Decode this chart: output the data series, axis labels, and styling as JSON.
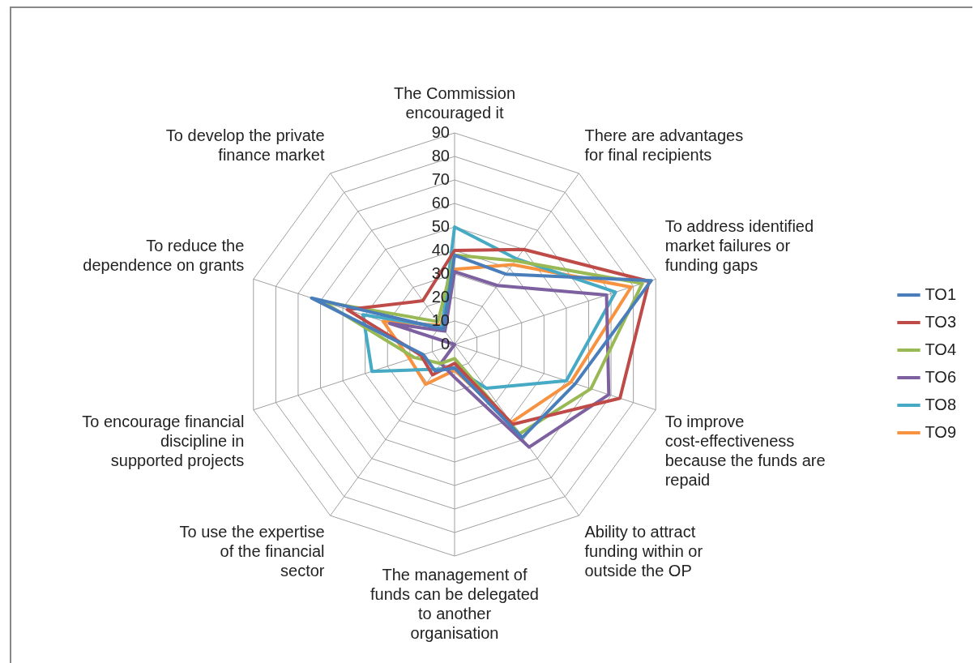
{
  "chart_data": {
    "type": "radar",
    "categories": [
      "The Commission encouraged it",
      "There are advantages for final recipients",
      "To address identified market failures or funding gaps",
      "To improve cost-effectiveness because the funds are repaid",
      "Ability to attract funding within or outside the OP",
      "The management of funds can be delegated to another organisation",
      "To use the expertise of the financial sector",
      "To encourage financial discipline in supported projects",
      "To reduce the dependence on grants",
      "To develop the private finance market"
    ],
    "ylim": [
      0,
      90
    ],
    "yticks": [
      0,
      10,
      20,
      30,
      40,
      50,
      60,
      70,
      80,
      90
    ],
    "grid": true,
    "legend": "right",
    "series": [
      {
        "name": "TO1",
        "color": "#4a7ebb",
        "values": [
          38,
          37,
          88,
          54,
          49,
          10,
          14,
          14,
          64,
          8
        ]
      },
      {
        "name": "TO3",
        "color": "#be4b48",
        "values": [
          40,
          50,
          87,
          74,
          42,
          8,
          16,
          15,
          48,
          23
        ]
      },
      {
        "name": "TO4",
        "color": "#98b954",
        "values": [
          38,
          44,
          84,
          61,
          47,
          6,
          10,
          18,
          59,
          12
        ]
      },
      {
        "name": "TO6",
        "color": "#7d60a0",
        "values": [
          31,
          31,
          68,
          69,
          54,
          14,
          10,
          0,
          29,
          7
        ]
      },
      {
        "name": "TO8",
        "color": "#46aac5",
        "values": [
          50,
          45,
          72,
          50,
          23,
          10,
          13,
          37,
          41,
          9
        ]
      },
      {
        "name": "TO9",
        "color": "#f69240",
        "values": [
          32,
          42,
          79,
          52,
          41,
          11,
          21,
          20,
          32,
          10
        ]
      }
    ]
  }
}
